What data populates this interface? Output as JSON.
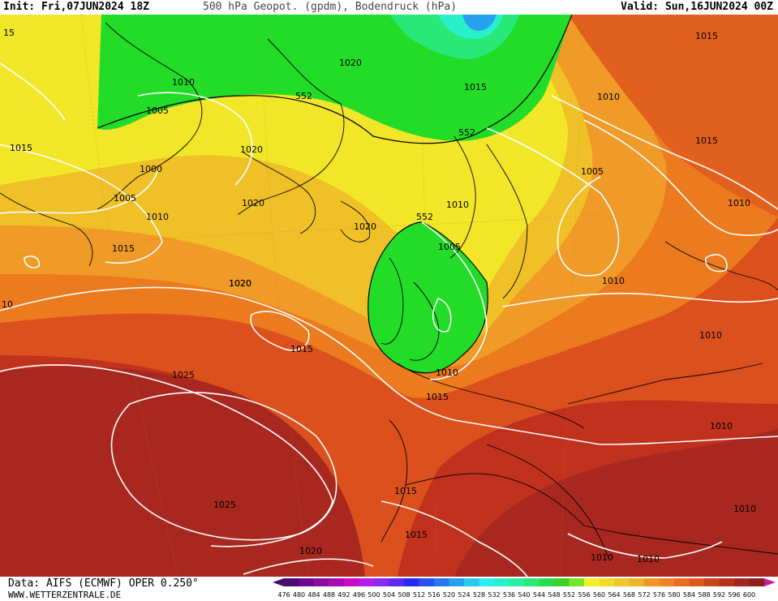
{
  "header": {
    "init": "Init: Fri,07JUN2024 18Z",
    "title": "500 hPa Geopot. (gpdm), Bodendruck (hPa)",
    "valid": "Valid: Sun,16JUN2024 00Z"
  },
  "footer": {
    "source": "Data: AIFS (ECMWF) OPER 0.250°",
    "website": "WWW.WETTERZENTRALE.DE"
  },
  "scale": {
    "values": [
      "476",
      "480",
      "484",
      "488",
      "492",
      "496",
      "500",
      "504",
      "508",
      "512",
      "516",
      "520",
      "524",
      "528",
      "532",
      "536",
      "540",
      "544",
      "548",
      "552",
      "556",
      "560",
      "564",
      "568",
      "572",
      "576",
      "580",
      "584",
      "588",
      "592",
      "596",
      "600"
    ],
    "colors": [
      "#4b0a6e",
      "#6e0a8c",
      "#8c0aa0",
      "#aa0ab4",
      "#c80ac8",
      "#b41ee6",
      "#8c28f0",
      "#5a28f0",
      "#2828f0",
      "#2850f0",
      "#2878f0",
      "#28a0f0",
      "#28c8f0",
      "#28f0f0",
      "#28f0c8",
      "#28f0a0",
      "#28e878",
      "#28dc50",
      "#3cd228",
      "#78e628",
      "#f0f028",
      "#f0dc28",
      "#f0c828",
      "#f0b428",
      "#f09628",
      "#f08228",
      "#e66e1e",
      "#dc5a1e",
      "#c8461e",
      "#b4321e",
      "#a0281e",
      "#8c1e1e"
    ]
  },
  "map": {
    "contour_label_552": "552",
    "pressure_labels": [
      "15",
      "1015",
      "1015",
      "1020",
      "1010",
      "1015",
      "1005",
      "1020",
      "552",
      "552",
      "1015",
      "1010",
      "1020",
      "1000",
      "1005",
      "1020",
      "1005",
      "1010",
      "1020",
      "1010",
      "1015",
      "1010",
      "552",
      "1005",
      "1010",
      "10",
      "1020",
      "1015",
      "1010",
      "1010",
      "1025",
      "1010",
      "1015",
      "1015",
      "1010",
      "1025",
      "1015",
      "1020",
      "1010",
      "1010"
    ]
  }
}
